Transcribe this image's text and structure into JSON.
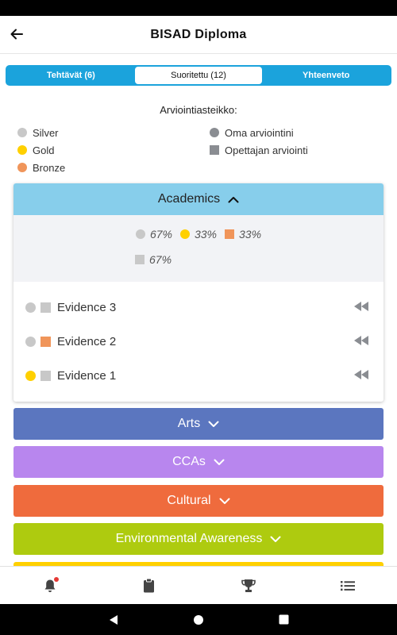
{
  "appbar": {
    "title": "BISAD Diploma"
  },
  "tabs": [
    {
      "label": "Tehtävät (6)",
      "active": false
    },
    {
      "label": "Suoritettu (12)",
      "active": true
    },
    {
      "label": "Yhteenveto",
      "active": false
    }
  ],
  "legend": {
    "title": "Arviointiasteikko:",
    "left": [
      {
        "label": "Silver",
        "color": "#c8c8c8"
      },
      {
        "label": "Gold",
        "color": "#ffd000"
      },
      {
        "label": "Bronze",
        "color": "#f0955a"
      }
    ],
    "right": [
      {
        "label": "Oma arviointini",
        "color": "#8a8d92",
        "shape": "circle"
      },
      {
        "label": "Opettajan arviointi",
        "color": "#8a8d92",
        "shape": "square"
      }
    ]
  },
  "academics": {
    "title": "Academics",
    "header_color": "#87ceeb",
    "summary": {
      "row1": [
        {
          "value": "67%",
          "color": "#c8c8c8",
          "shape": "circle"
        },
        {
          "value": "33%",
          "color": "#ffd000",
          "shape": "circle"
        },
        {
          "value": "33%",
          "color": "#f0955a",
          "shape": "square"
        }
      ],
      "row2": [
        {
          "value": "67%",
          "color": "#c8c8c8",
          "shape": "square"
        }
      ]
    },
    "evidence": [
      {
        "label": "Evidence 3",
        "self_color": "#c8c8c8",
        "teacher_color": "#c8c8c8"
      },
      {
        "label": "Evidence 2",
        "self_color": "#c8c8c8",
        "teacher_color": "#f0955a"
      },
      {
        "label": "Evidence 1",
        "self_color": "#ffd000",
        "teacher_color": "#c8c8c8"
      }
    ]
  },
  "categories": [
    {
      "label": "Arts",
      "color": "#5b76bf"
    },
    {
      "label": "CCAs",
      "color": "#b886ee"
    },
    {
      "label": "Cultural",
      "color": "#ef6b3d"
    },
    {
      "label": "Environmental Awareness",
      "color": "#aecb0f"
    }
  ],
  "next_category_color": "#ffd000",
  "bottom_nav": [
    {
      "icon": "bell-icon",
      "has_badge": true
    },
    {
      "icon": "clipboard-icon",
      "has_badge": false
    },
    {
      "icon": "trophy-icon",
      "has_badge": false
    },
    {
      "icon": "list-icon",
      "has_badge": false
    }
  ]
}
